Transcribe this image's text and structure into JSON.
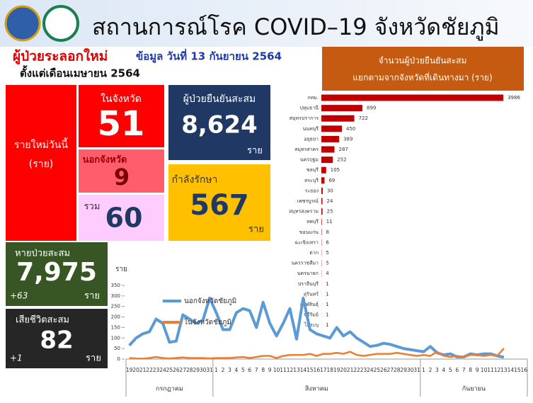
{
  "header": {
    "title": "สถานการณ์โรค COVID–19 จังหวัดชัยภูมิ",
    "subtitle": "ผู้ป่วยระลอกใหม่",
    "date": "ข้อมูล วันที่ 13 กันยายน 2564",
    "since": "ตั้งแต่เดือนเมษายน 2564"
  },
  "today": {
    "label": "รายใหม่วันนี้",
    "unit": "(ราย)",
    "in_province": {
      "label": "ในจังหวัด",
      "value": "51"
    },
    "out_province": {
      "label": "นอกจังหวัด",
      "value": "9"
    },
    "total": {
      "label": "รวม",
      "value": "60"
    }
  },
  "cumulative": {
    "label": "ผู้ป่วยยืนยันสะสม",
    "value": "8,624",
    "unit": "ราย"
  },
  "treating": {
    "label": "กำลังรักษา",
    "value": "567",
    "unit": "ราย"
  },
  "recovered": {
    "label": "หายป่วยสะสม",
    "value": "7,975",
    "change": "+63",
    "unit": "ราย"
  },
  "deaths": {
    "label": "เสียชีวิตสะสม",
    "value": "82",
    "change": "+1",
    "unit": "ราย"
  },
  "chart_data": [
    {
      "type": "bar",
      "orientation": "horizontal",
      "title": "จำนวนผู้ป่วยยืนยันสะสม",
      "subtitle": "แยกตามจากจังหวัดที่เดินทางมา  (ราย)",
      "categories": [
        "กทม.",
        "ปทุมธานี",
        "สมุทรปราการ",
        "นนทบุรี",
        "อยุธยา",
        "สมุทรสาคร",
        "นครปฐม",
        "ชลบุรี",
        "สระบุรี",
        "ระยอง",
        "เพชรบูรณ์",
        "สมุทรสงคราม",
        "ลพบุรี",
        "ขอนแก่น",
        "ฉะเชิงเทรา",
        "ตาก",
        "นครราชสีมา",
        "นครนายก",
        "ปราจีนบุรี",
        "สุรินทร์",
        "กาฬสินธุ์",
        "บุรีรัมย์",
        "ไม่ระบุ"
      ],
      "values": [
        3986,
        899,
        722,
        450,
        389,
        287,
        252,
        105,
        69,
        30,
        24,
        25,
        11,
        8,
        6,
        5,
        5,
        4,
        1,
        1,
        1,
        1,
        1
      ],
      "color": "#c00000",
      "xlim": [
        0,
        4000
      ]
    },
    {
      "type": "line",
      "ylabel": "ราย",
      "categories": [
        "19",
        "20",
        "21",
        "22",
        "23",
        "24",
        "25",
        "26",
        "27",
        "28",
        "29",
        "30",
        "31",
        "1",
        "2",
        "3",
        "4",
        "5",
        "6",
        "7",
        "8",
        "9",
        "10",
        "11",
        "12",
        "13",
        "14",
        "15",
        "16",
        "17",
        "18",
        "19",
        "20",
        "21",
        "22",
        "23",
        "24",
        "25",
        "26",
        "27",
        "28",
        "29",
        "30",
        "31",
        "1",
        "2",
        "3",
        "4",
        "5",
        "6",
        "7",
        "8",
        "9",
        "10",
        "11",
        "12",
        "13",
        "14",
        "15",
        "16"
      ],
      "months": [
        "กรกฎาคม",
        "สิงหาคม",
        "กันยายน"
      ],
      "ylim": [
        0,
        350
      ],
      "yticks": [
        0,
        50,
        100,
        150,
        200,
        250,
        300,
        350
      ],
      "series": [
        {
          "name": "นอกจังหวัดชัยภูมิ",
          "color": "#5b9bd5",
          "values": [
            65,
            100,
            120,
            130,
            190,
            170,
            80,
            85,
            210,
            190,
            170,
            185,
            290,
            220,
            140,
            140,
            220,
            240,
            230,
            150,
            270,
            170,
            110,
            170,
            240,
            95,
            290,
            140,
            120,
            110,
            100,
            150,
            110,
            130,
            100,
            80,
            60,
            65,
            75,
            70,
            60,
            50,
            45,
            40,
            35,
            60,
            30,
            20,
            25,
            10,
            10,
            25,
            20,
            25,
            25,
            15,
            9,
            null,
            null,
            null
          ]
        },
        {
          "name": "ในจังหวัดชัยภูมิ",
          "color": "#ed7d31",
          "values": [
            5,
            3,
            2,
            5,
            10,
            5,
            3,
            5,
            8,
            5,
            5,
            5,
            3,
            5,
            5,
            5,
            8,
            10,
            5,
            10,
            15,
            15,
            5,
            15,
            20,
            20,
            20,
            25,
            15,
            25,
            25,
            30,
            25,
            35,
            20,
            15,
            20,
            25,
            25,
            25,
            30,
            25,
            20,
            15,
            20,
            15,
            35,
            15,
            10,
            15,
            10,
            20,
            20,
            15,
            20,
            15,
            51,
            null,
            null,
            null
          ]
        }
      ]
    }
  ]
}
